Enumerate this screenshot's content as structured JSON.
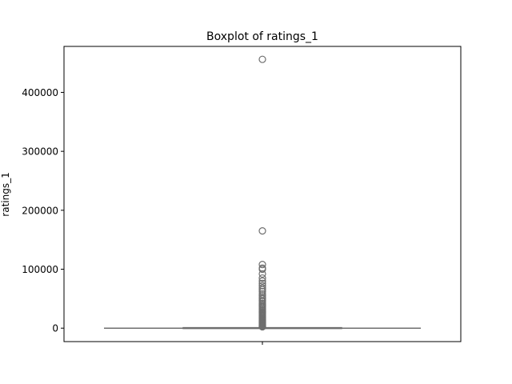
{
  "chart_data": {
    "type": "boxplot",
    "title": "Boxplot of ratings_1",
    "xlabel": "",
    "ylabel": "ratings_1",
    "ylim": [
      -22800,
      478000
    ],
    "yticks": [
      0,
      100000,
      200000,
      300000,
      400000
    ],
    "ytick_labels": [
      "0",
      "100000",
      "200000",
      "300000",
      "400000"
    ],
    "grid": false,
    "legend": "none",
    "box": {
      "min": 0,
      "q1": 0,
      "median": 0,
      "q3": 800,
      "whisker_low": 0,
      "whisker_high": 2000
    },
    "outliers": [
      456000,
      165000,
      108000,
      102000,
      100000,
      92000,
      85000,
      80000,
      76000,
      72000,
      68000,
      65000,
      62000,
      58000,
      55000,
      52000,
      50000,
      47000,
      45000,
      42000,
      40000,
      38000,
      36000,
      34000,
      32000,
      30000,
      28000,
      26500,
      25000,
      23500,
      22000,
      20500,
      19000,
      17500,
      16000,
      14500,
      13000,
      12000,
      11000,
      10000,
      9000,
      8000,
      7000,
      6000,
      5200,
      4500,
      3800,
      3200,
      2700,
      2300
    ],
    "colors": {
      "box_line": "#6e6e6e",
      "outlier_edge": "#6e6e6e",
      "axes": "#000000"
    }
  }
}
